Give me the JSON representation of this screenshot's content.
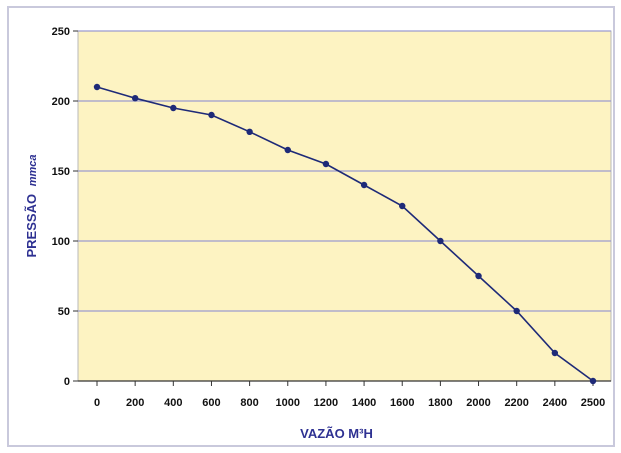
{
  "chart_data": {
    "type": "line",
    "xlabel": "VAZÃO M³H",
    "ylabel_main": "PRESSÃO",
    "ylabel_unit": "mmca",
    "x": [
      0,
      200,
      400,
      600,
      800,
      1000,
      1200,
      1400,
      1600,
      1800,
      2000,
      2200,
      2400,
      2500
    ],
    "x_tick_labels": [
      "0",
      "200",
      "400",
      "600",
      "800",
      "1000",
      "1200",
      "1400",
      "1600",
      "1800",
      "2000",
      "2200",
      "2400",
      "2500"
    ],
    "series": [
      {
        "values": [
          210,
          202,
          195,
          190,
          178,
          165,
          155,
          140,
          125,
          100,
          75,
          50,
          20,
          0
        ]
      }
    ],
    "ylim": [
      0,
      250
    ],
    "y_ticks": [
      0,
      50,
      100,
      150,
      200,
      250
    ],
    "grid": "horizontal",
    "colors": {
      "plot_background": "#fdf3c2",
      "grid_line": "#9b9bd0",
      "series_line": "#1e2a78",
      "axis_title": "#2e3192"
    }
  }
}
